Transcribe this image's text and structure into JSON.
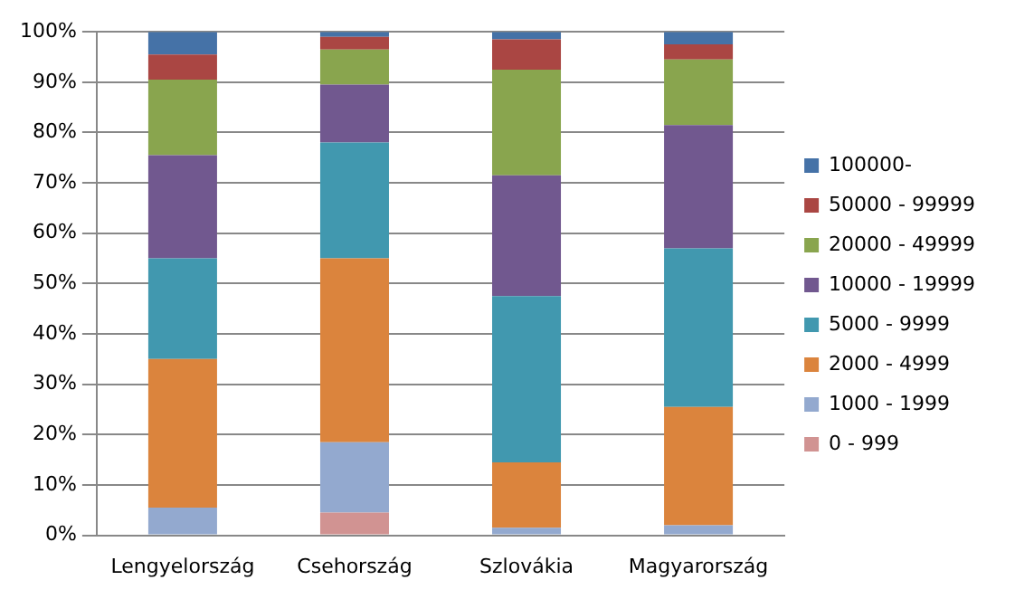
{
  "chart_data": {
    "type": "bar",
    "stacked": true,
    "categories": [
      "Lengyelország",
      "Csehország",
      "Szlovákia",
      "Magyarország"
    ],
    "series": [
      {
        "name": "0 - 999",
        "color": "#d19392",
        "values": [
          0,
          4.5,
          0,
          0
        ]
      },
      {
        "name": "1000 - 1999",
        "color": "#93a9cf",
        "values": [
          5.5,
          14,
          1.5,
          2
        ]
      },
      {
        "name": "2000 - 4999",
        "color": "#db843d",
        "values": [
          29.5,
          36.5,
          13,
          23.5
        ]
      },
      {
        "name": "5000 - 9999",
        "color": "#4198af",
        "values": [
          20,
          23,
          33,
          31.5
        ]
      },
      {
        "name": "10000 - 19999",
        "color": "#71588f",
        "values": [
          20.5,
          11.5,
          24,
          24.5
        ]
      },
      {
        "name": "20000 - 49999",
        "color": "#89a54e",
        "values": [
          15,
          7,
          21,
          13
        ]
      },
      {
        "name": "50000 - 99999",
        "color": "#aa4643",
        "values": [
          5,
          2.5,
          6,
          3
        ]
      },
      {
        "name": "100000-",
        "color": "#4572a7",
        "values": [
          4.5,
          1,
          1.5,
          2.5
        ]
      }
    ],
    "ylim": [
      0,
      100
    ],
    "yticks": [
      {
        "value": 0,
        "label": "0%"
      },
      {
        "value": 10,
        "label": "10%"
      },
      {
        "value": 20,
        "label": "20%"
      },
      {
        "value": 30,
        "label": "30%"
      },
      {
        "value": 40,
        "label": "40%"
      },
      {
        "value": 50,
        "label": "50%"
      },
      {
        "value": 60,
        "label": "60%"
      },
      {
        "value": 70,
        "label": "70%"
      },
      {
        "value": 80,
        "label": "80%"
      },
      {
        "value": 90,
        "label": "90%"
      },
      {
        "value": 100,
        "label": "100%"
      }
    ],
    "grid": "y",
    "legend": "right"
  }
}
